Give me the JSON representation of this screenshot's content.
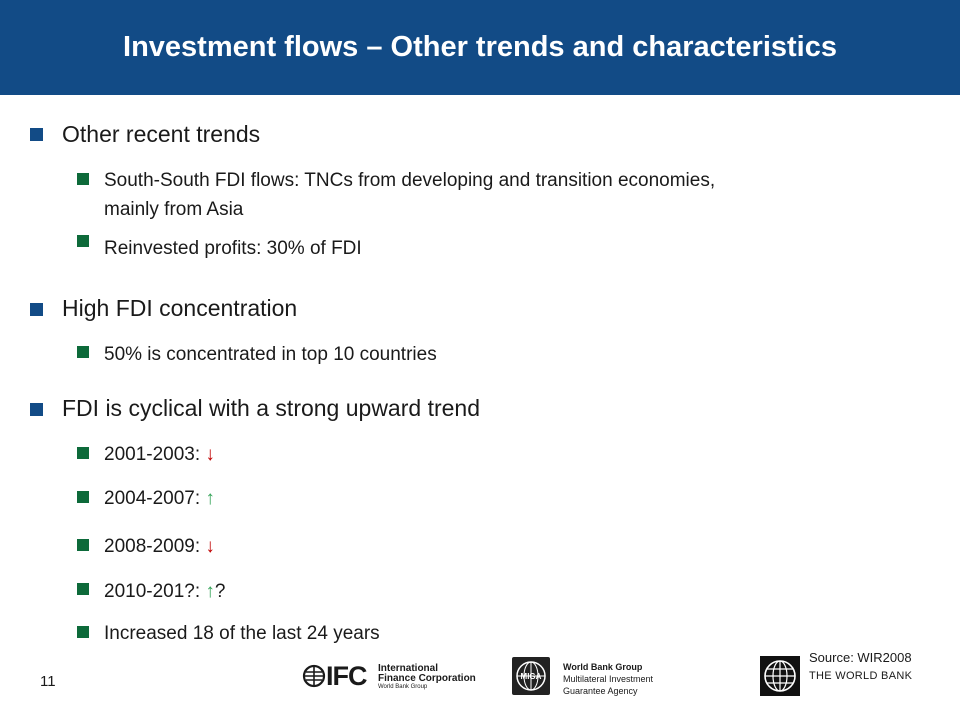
{
  "slide": {
    "title": "Investment flows – Other trends and characteristics",
    "page_number": "11"
  },
  "sections": [
    {
      "heading": "Other recent trends",
      "items": [
        "South-South FDI flows: TNCs from developing and transition economies,",
        "mainly from Asia",
        "Reinvested profits: 30% of FDI"
      ]
    },
    {
      "heading": "High FDI concentration",
      "items": [
        "50% is concentrated in top 10 countries"
      ]
    },
    {
      "heading": "FDI is cyclical with a strong upward trend",
      "items": [
        {
          "text": "2001-2003: ",
          "arrow": "↓"
        },
        {
          "text": "2004-2007: ",
          "arrow": "↑"
        },
        {
          "text": "2008-2009: ",
          "arrow": "↓"
        },
        {
          "text": "2010-201?: ",
          "arrow": "↑",
          "suffix": "?"
        },
        {
          "text": "Increased 18 of the last 24 years"
        }
      ]
    }
  ],
  "footer": {
    "ifc": {
      "letters": "IFC",
      "name_line1": "International",
      "name_line2": "Finance Corporation",
      "sub": "World Bank Group"
    },
    "miga": {
      "logo_text": "MIGA",
      "line1": "World Bank Group",
      "line2": "Multilateral Investment",
      "line3": "Guarantee Agency"
    },
    "source": "Source: WIR2008",
    "world_bank": "THE WORLD BANK"
  },
  "colors": {
    "title_bar": "#124b86",
    "bullet_level1": "#124b86",
    "bullet_level2": "#0d6a3a",
    "arrow_down": "#c00000",
    "arrow_up": "#33a357"
  }
}
